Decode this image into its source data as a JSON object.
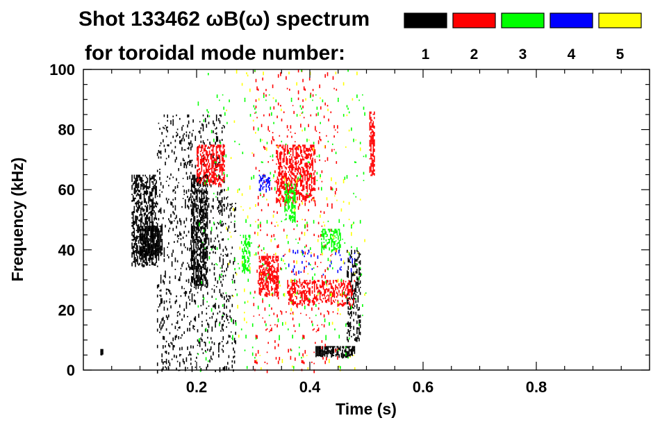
{
  "chart_data": {
    "type": "heatmap",
    "title": "Shot 133462 ωB(ω) spectrum",
    "subtitle": "for toroidal mode number:",
    "xlabel": "Time (s)",
    "ylabel": "Frequency (kHz)",
    "xlim": [
      0.0,
      1.0
    ],
    "ylim": [
      0,
      100
    ],
    "x_ticks": [
      0.2,
      0.4,
      0.6,
      0.8
    ],
    "x_tick_labels": [
      "0.2",
      "0.4",
      "0.6",
      "0.8"
    ],
    "y_ticks": [
      0,
      20,
      40,
      60,
      80,
      100
    ],
    "y_tick_labels": [
      "0",
      "20",
      "40",
      "60",
      "80",
      "100"
    ],
    "legend": [
      {
        "label": "1",
        "color": "#000000"
      },
      {
        "label": "2",
        "color": "#ff0000"
      },
      {
        "label": "3",
        "color": "#00ff00"
      },
      {
        "label": "4",
        "color": "#0000ff"
      },
      {
        "label": "5",
        "color": "#ffff00"
      }
    ],
    "regions": [
      {
        "mode": 1,
        "t": [
          0.085,
          0.13
        ],
        "f": [
          35,
          65
        ],
        "density": 0.55
      },
      {
        "mode": 1,
        "t": [
          0.1,
          0.14
        ],
        "f": [
          38,
          48
        ],
        "density": 0.8
      },
      {
        "mode": 1,
        "t": [
          0.19,
          0.22
        ],
        "f": [
          28,
          65
        ],
        "density": 0.65
      },
      {
        "mode": 1,
        "t": [
          0.13,
          0.25
        ],
        "f": [
          0,
          85
        ],
        "density": 0.12
      },
      {
        "mode": 1,
        "t": [
          0.24,
          0.27
        ],
        "f": [
          0,
          60
        ],
        "density": 0.12
      },
      {
        "mode": 1,
        "t": [
          0.41,
          0.48
        ],
        "f": [
          5,
          8
        ],
        "density": 0.75
      },
      {
        "mode": 1,
        "t": [
          0.465,
          0.49
        ],
        "f": [
          10,
          40
        ],
        "density": 0.35
      },
      {
        "mode": 1,
        "t": [
          0.03,
          0.035
        ],
        "f": [
          5,
          7
        ],
        "density": 0.8
      },
      {
        "mode": 2,
        "t": [
          0.2,
          0.25
        ],
        "f": [
          62,
          75
        ],
        "density": 0.5
      },
      {
        "mode": 2,
        "t": [
          0.31,
          0.345
        ],
        "f": [
          25,
          38
        ],
        "density": 0.6
      },
      {
        "mode": 2,
        "t": [
          0.34,
          0.41
        ],
        "f": [
          56,
          75
        ],
        "density": 0.5
      },
      {
        "mode": 2,
        "t": [
          0.36,
          0.48
        ],
        "f": [
          22,
          30
        ],
        "density": 0.45
      },
      {
        "mode": 2,
        "t": [
          0.505,
          0.515
        ],
        "f": [
          65,
          86
        ],
        "density": 0.6
      },
      {
        "mode": 2,
        "t": [
          0.3,
          0.45
        ],
        "f": [
          0,
          100
        ],
        "density": 0.03
      },
      {
        "mode": 3,
        "t": [
          0.28,
          0.295
        ],
        "f": [
          33,
          45
        ],
        "density": 0.5
      },
      {
        "mode": 3,
        "t": [
          0.355,
          0.375
        ],
        "f": [
          50,
          62
        ],
        "density": 0.5
      },
      {
        "mode": 3,
        "t": [
          0.42,
          0.455
        ],
        "f": [
          40,
          47
        ],
        "density": 0.45
      },
      {
        "mode": 3,
        "t": [
          0.2,
          0.5
        ],
        "f": [
          0,
          100
        ],
        "density": 0.015
      },
      {
        "mode": 4,
        "t": [
          0.31,
          0.33
        ],
        "f": [
          60,
          65
        ],
        "density": 0.4
      },
      {
        "mode": 4,
        "t": [
          0.35,
          0.48
        ],
        "f": [
          32,
          40
        ],
        "density": 0.06
      },
      {
        "mode": 5,
        "t": [
          0.25,
          0.5
        ],
        "f": [
          0,
          100
        ],
        "density": 0.01
      }
    ]
  }
}
